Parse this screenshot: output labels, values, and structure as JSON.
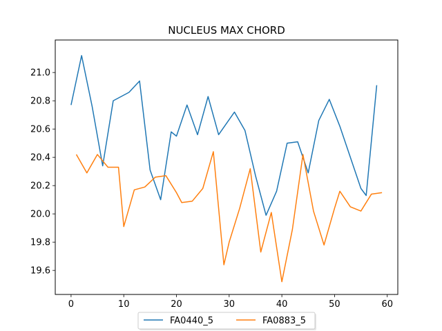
{
  "chart_data": {
    "type": "line",
    "title": "NUCLEUS MAX CHORD",
    "xlabel": "",
    "ylabel": "",
    "xlim": [
      -3,
      62
    ],
    "ylim": [
      19.43,
      21.23
    ],
    "xticks": [
      0,
      10,
      20,
      30,
      40,
      50,
      60
    ],
    "xtick_labels": [
      "0",
      "10",
      "20",
      "30",
      "40",
      "50",
      "60"
    ],
    "yticks": [
      19.6,
      19.8,
      20.0,
      20.2,
      20.4,
      20.6,
      20.8,
      21.0
    ],
    "ytick_labels": [
      "19.6",
      "19.8",
      "20.0",
      "20.2",
      "20.4",
      "20.6",
      "20.8",
      "21.0"
    ],
    "grid": false,
    "legend": {
      "placement": "bottom-center, below plot",
      "ncol": 2
    },
    "series": [
      {
        "name": "FA0440_5",
        "color": "#1f77b4",
        "x": [
          0,
          2,
          4,
          6,
          8,
          11,
          13,
          15,
          17,
          19,
          20,
          22,
          24,
          26,
          28,
          31,
          33,
          35,
          37,
          39,
          41,
          43,
          45,
          47,
          49,
          51,
          53,
          55,
          56,
          58
        ],
        "y": [
          20.77,
          21.12,
          20.76,
          20.34,
          20.8,
          20.86,
          20.94,
          20.31,
          20.1,
          20.58,
          20.55,
          20.77,
          20.56,
          20.83,
          20.56,
          20.72,
          20.59,
          20.27,
          19.99,
          20.16,
          20.5,
          20.51,
          20.29,
          20.66,
          20.81,
          20.62,
          20.4,
          20.18,
          20.13,
          20.91
        ]
      },
      {
        "name": "FA0883_5",
        "color": "#ff7f0e",
        "x": [
          1,
          3,
          5,
          7,
          9,
          10,
          12,
          14,
          16,
          18,
          20,
          21,
          23,
          25,
          27,
          29,
          30,
          32,
          34,
          36,
          38,
          40,
          42,
          44,
          46,
          48,
          50,
          51,
          53,
          55,
          57,
          59
        ],
        "y": [
          20.42,
          20.29,
          20.42,
          20.33,
          20.33,
          19.91,
          20.17,
          20.19,
          20.26,
          20.27,
          20.15,
          20.08,
          20.09,
          20.18,
          20.44,
          19.64,
          19.8,
          20.04,
          20.32,
          19.73,
          20.01,
          19.52,
          19.89,
          20.42,
          20.02,
          19.78,
          20.04,
          20.16,
          20.05,
          20.02,
          20.14,
          20.15
        ]
      }
    ]
  }
}
